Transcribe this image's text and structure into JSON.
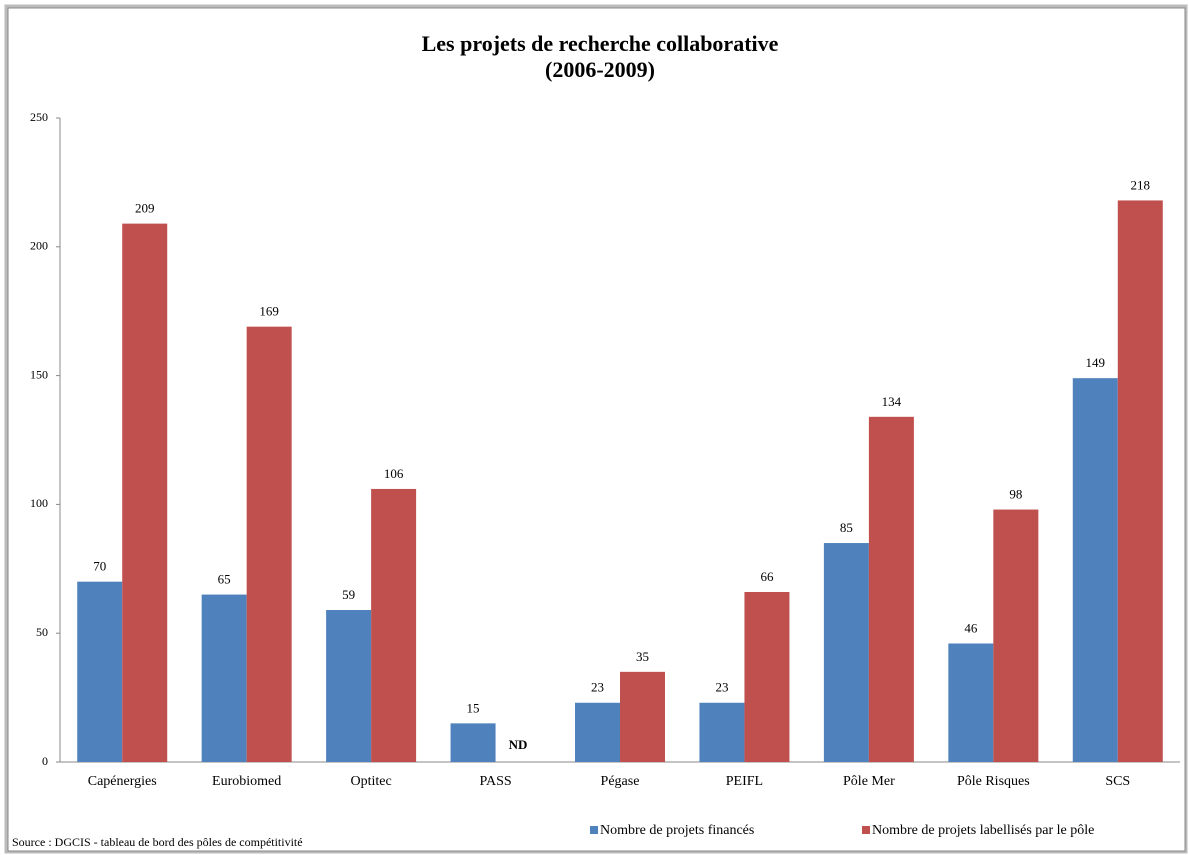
{
  "chart_data": {
    "type": "bar",
    "title": "Les projets de recherche collaborative",
    "subtitle": "(2006-2009)",
    "source": "Source : DGCIS - tableau de bord des pôles de compétitivité",
    "categories": [
      "Capénergies",
      "Eurobiomed",
      "Optitec",
      "PASS",
      "Pégase",
      "PEIFL",
      "Pôle Mer",
      "Pôle Risques",
      "SCS"
    ],
    "series": [
      {
        "name": "Nombre de projets financés",
        "color": "#4f81bd",
        "values": [
          70,
          65,
          59,
          15,
          23,
          23,
          85,
          46,
          149
        ]
      },
      {
        "name": "Nombre de projets labellisés par le pôle",
        "color": "#c0504d",
        "values": [
          209,
          169,
          106,
          null,
          35,
          66,
          134,
          98,
          218
        ],
        "value_labels": [
          "209",
          "169",
          "106",
          "ND",
          "35",
          "66",
          "134",
          "98",
          "218"
        ]
      }
    ],
    "ylim": [
      0,
      250
    ],
    "yticks": [
      0,
      50,
      100,
      150,
      200,
      250
    ],
    "grid": false,
    "legend": "bottom"
  }
}
